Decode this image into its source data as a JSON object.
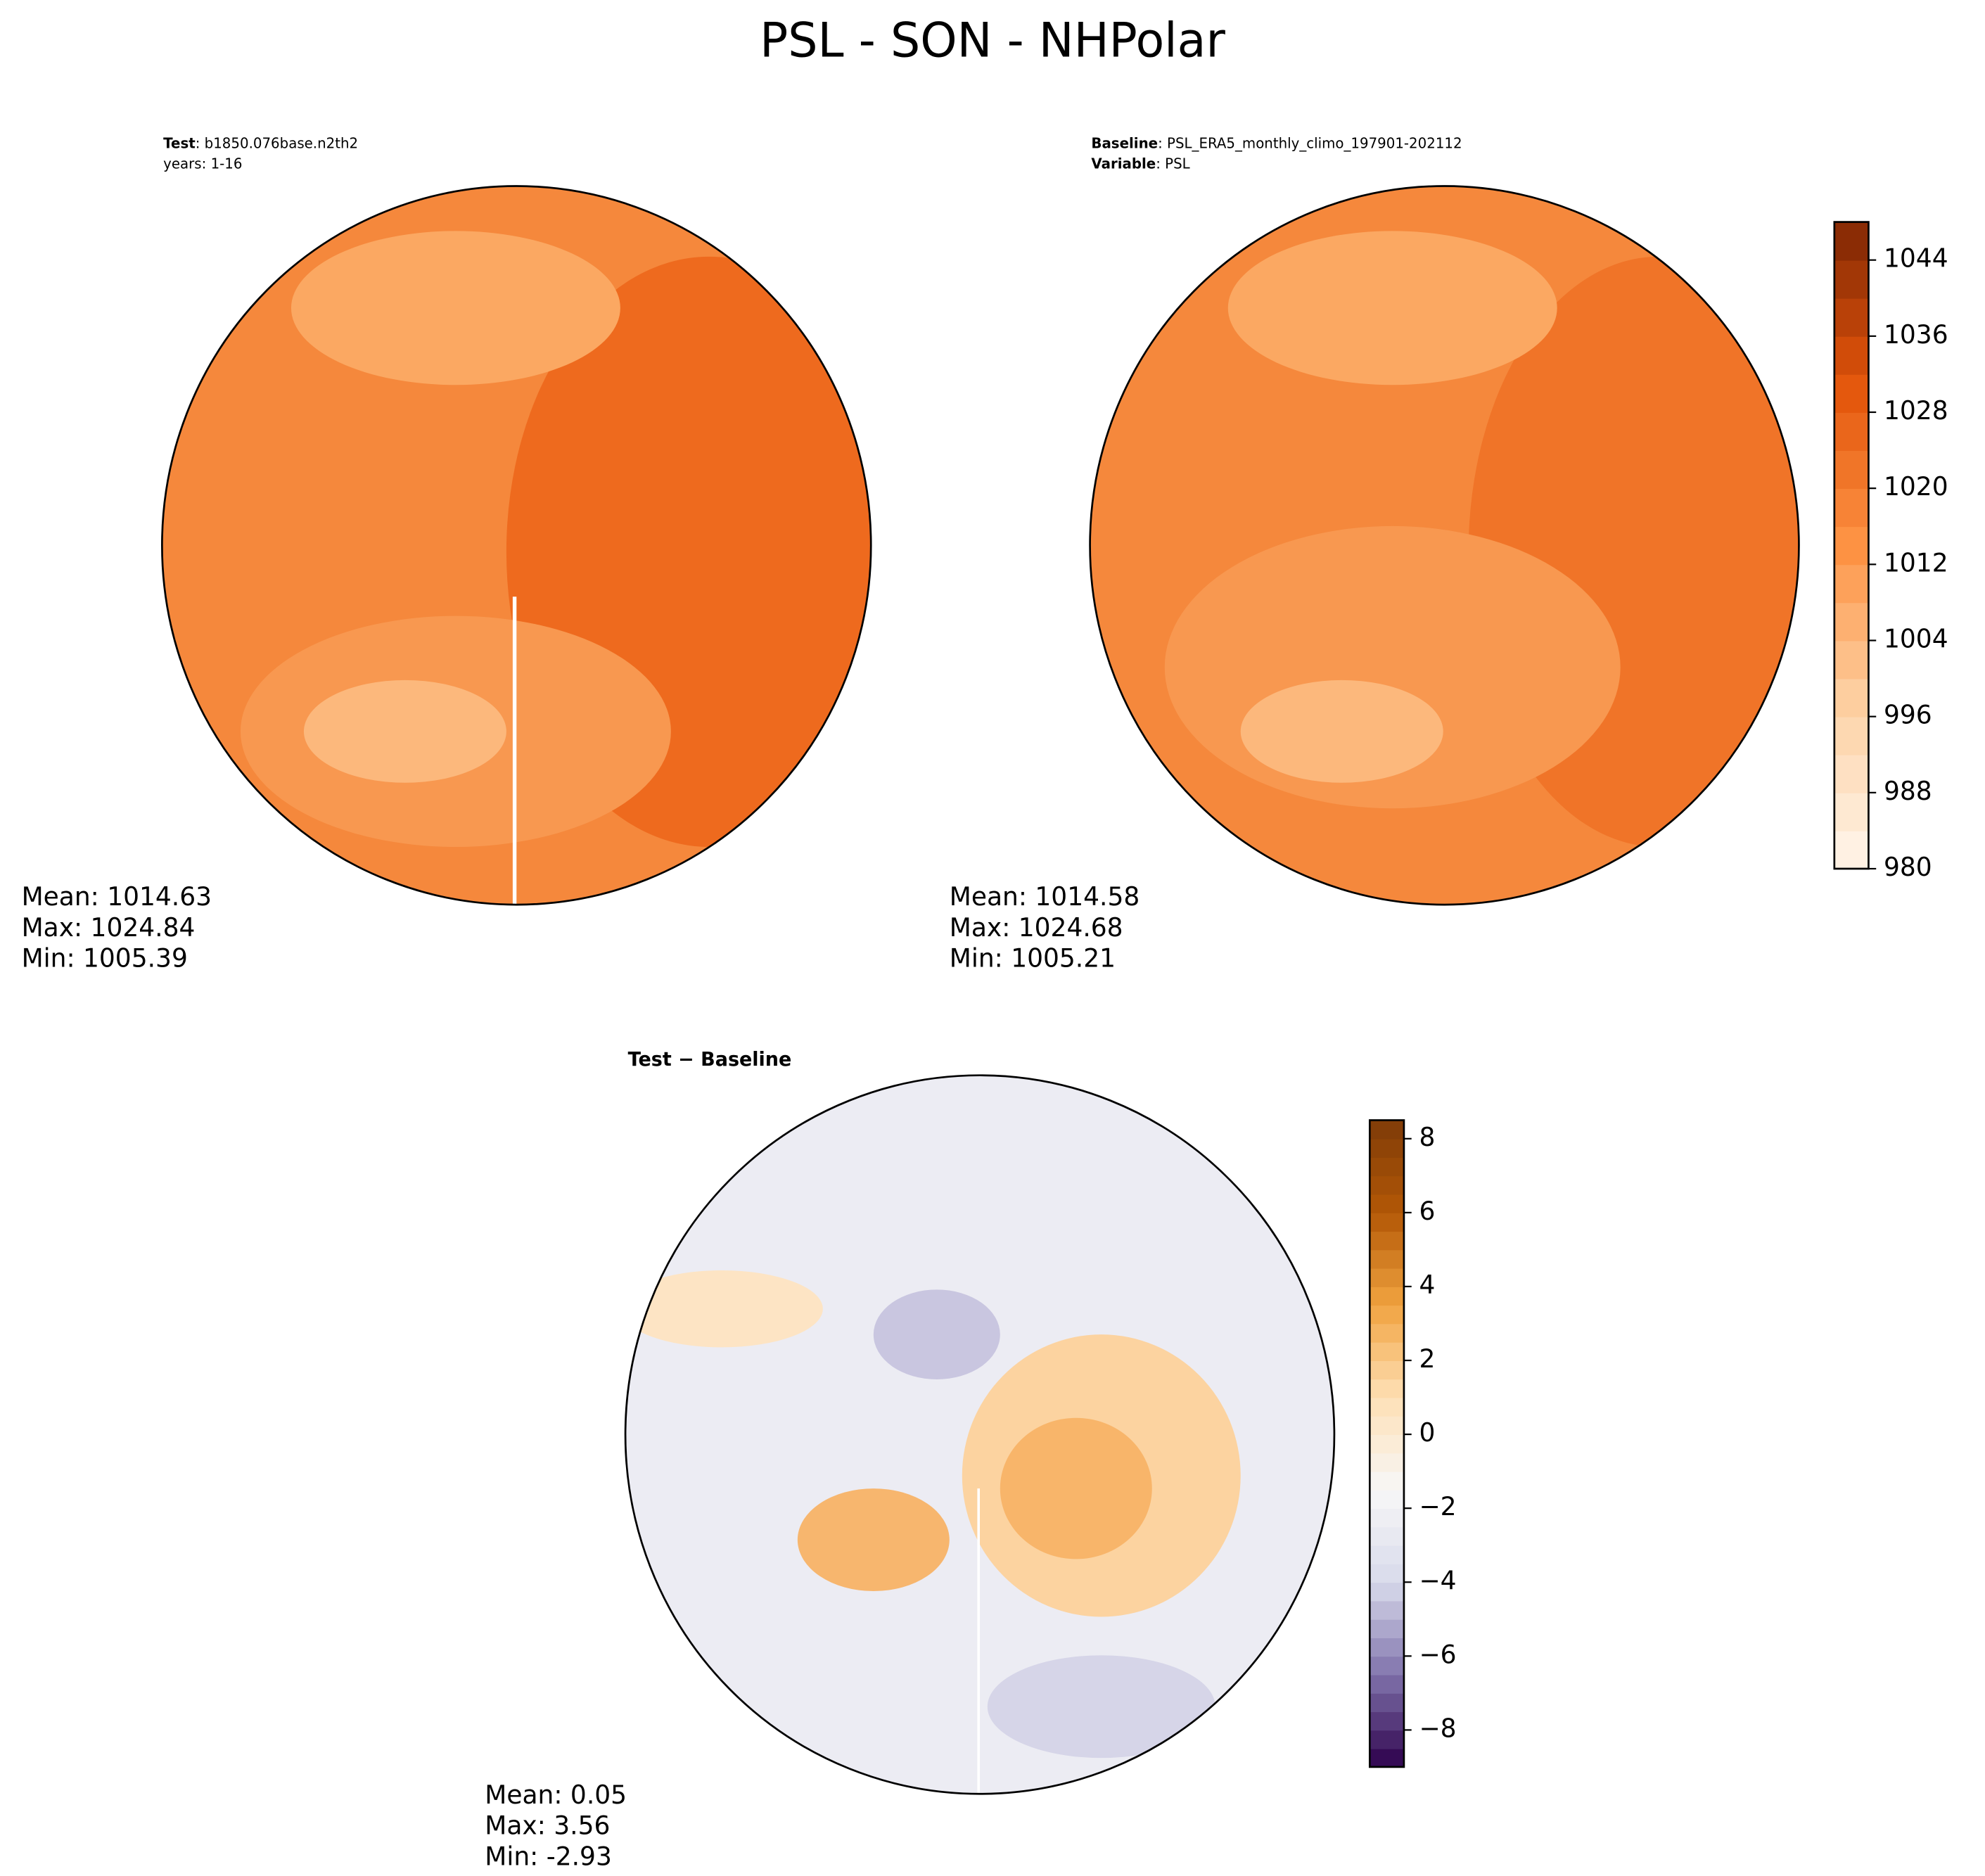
{
  "title": "PSL - SON - NHPolar",
  "chart_data": [
    {
      "type": "polar-contour-map",
      "header": [
        {
          "label": "Test",
          "text": ": b1850.076base.n2th2"
        },
        {
          "text": "years: 1-16"
        }
      ],
      "stats": [
        "Mean: 1014.63",
        "Max: 1024.84",
        "Min: 1005.39"
      ]
    },
    {
      "type": "polar-contour-map",
      "header": [
        {
          "label": "Baseline",
          "text": ": PSL_ERA5_monthly_climo_197901-202112"
        },
        {
          "label": "Variable",
          "text": ": PSL"
        }
      ],
      "stats": [
        "Mean: 1014.58",
        "Max: 1024.68",
        "Min: 1005.21"
      ],
      "colorbar": {
        "clim": [
          980,
          1048
        ],
        "ticks": [
          980,
          988,
          996,
          1004,
          1012,
          1020,
          1028,
          1036,
          1044
        ],
        "colormap": [
          "#fff5eb",
          "#fdd2a5",
          "#fd9243",
          "#e2540a",
          "#7f2704"
        ]
      }
    },
    {
      "type": "polar-contour-map",
      "header": [
        {
          "label": "Test − Baseline"
        }
      ],
      "stats": [
        "Mean:  0.05",
        "Max:  3.56",
        "Min: -2.93"
      ],
      "colorbar": {
        "clim": [
          -9,
          8.5
        ],
        "ticks": [
          {
            "value": -8,
            "label": "−8"
          },
          {
            "value": -6,
            "label": "−6"
          },
          {
            "value": -4,
            "label": "−4"
          },
          {
            "value": -2,
            "label": "−2"
          },
          0,
          2,
          4,
          6,
          8
        ],
        "colormap": [
          "#2d004b",
          "#8073ac",
          "#d8daeb",
          "#f7f7f7",
          "#fee0b6",
          "#f1a340",
          "#b35806",
          "#7f3b08"
        ]
      }
    }
  ]
}
